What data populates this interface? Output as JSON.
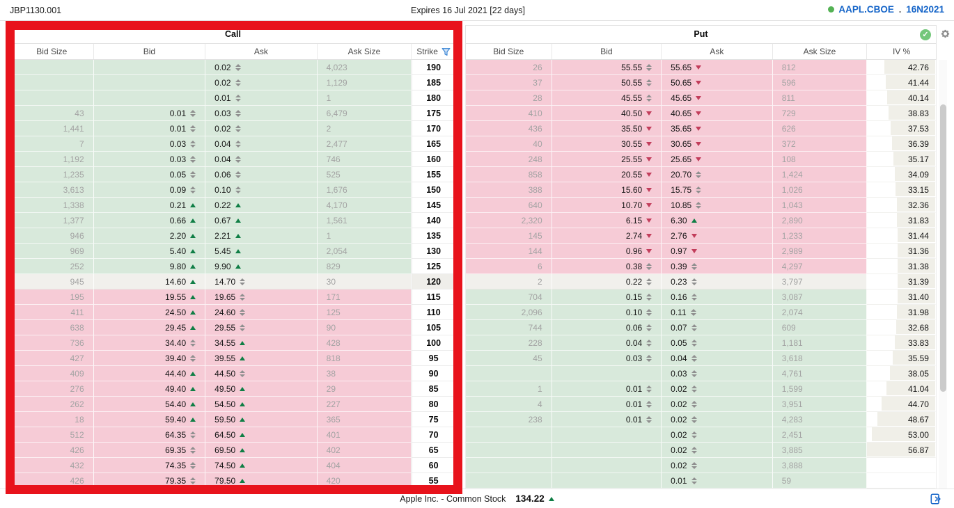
{
  "top_bar": {
    "account": "JBP1130.001",
    "expiry": "Expires 16 Jul 2021 [22 days]",
    "symbol": "AAPL.CBOE",
    "separator": ".",
    "contract": "16N2021"
  },
  "panels": {
    "call_title": "Call",
    "put_title": "Put"
  },
  "call_headers": [
    "Bid Size",
    "Bid",
    "Ask",
    "Ask Size",
    "Strike"
  ],
  "put_headers": [
    "Bid Size",
    "Bid",
    "Ask",
    "Ask Size",
    "IV %"
  ],
  "icons": {
    "filter": "funnel",
    "status_ok": "check-circle",
    "settings": "gear",
    "connection": "green-dot",
    "price_up": "triangle-up",
    "price_down": "triangle-down",
    "price_unchanged": "up-down-spinner",
    "footer_right": "panel-expand-arrows"
  },
  "colors": {
    "call_itm_bg": "#d8e9db",
    "put_itm_bg": "#f6cbd6",
    "atm_bg": "#f1f0ec",
    "up_arrow": "#0f7e45",
    "down_arrow": "#c23d5b",
    "accent_blue": "#1464c8",
    "annotation_red": "#e8131c",
    "iv_bar": "#f0efe8"
  },
  "iv_scale_max": 57,
  "rows": [
    {
      "strike": "190",
      "zone": "high",
      "call": {
        "bid_size": "",
        "bid": "",
        "bid_dir": "",
        "ask": "0.02",
        "ask_dir": "spin",
        "ask_size": "4,023"
      },
      "put": {
        "bid_size": "26",
        "bid": "55.55",
        "bid_dir": "spin",
        "ask": "55.65",
        "ask_dir": "down",
        "ask_size": "812",
        "iv": "42.76"
      }
    },
    {
      "strike": "185",
      "zone": "high",
      "call": {
        "bid_size": "",
        "bid": "",
        "bid_dir": "",
        "ask": "0.02",
        "ask_dir": "spin",
        "ask_size": "1,129"
      },
      "put": {
        "bid_size": "37",
        "bid": "50.55",
        "bid_dir": "spin",
        "ask": "50.65",
        "ask_dir": "down",
        "ask_size": "596",
        "iv": "41.44"
      }
    },
    {
      "strike": "180",
      "zone": "high",
      "call": {
        "bid_size": "",
        "bid": "",
        "bid_dir": "",
        "ask": "0.01",
        "ask_dir": "spin",
        "ask_size": "1"
      },
      "put": {
        "bid_size": "28",
        "bid": "45.55",
        "bid_dir": "spin",
        "ask": "45.65",
        "ask_dir": "down",
        "ask_size": "811",
        "iv": "40.14"
      }
    },
    {
      "strike": "175",
      "zone": "high",
      "call": {
        "bid_size": "43",
        "bid": "0.01",
        "bid_dir": "spin",
        "ask": "0.03",
        "ask_dir": "spin",
        "ask_size": "6,479"
      },
      "put": {
        "bid_size": "410",
        "bid": "40.50",
        "bid_dir": "down",
        "ask": "40.65",
        "ask_dir": "down",
        "ask_size": "729",
        "iv": "38.83"
      }
    },
    {
      "strike": "170",
      "zone": "high",
      "call": {
        "bid_size": "1,441",
        "bid": "0.01",
        "bid_dir": "spin",
        "ask": "0.02",
        "ask_dir": "spin",
        "ask_size": "2"
      },
      "put": {
        "bid_size": "436",
        "bid": "35.50",
        "bid_dir": "down",
        "ask": "35.65",
        "ask_dir": "down",
        "ask_size": "626",
        "iv": "37.53"
      }
    },
    {
      "strike": "165",
      "zone": "high",
      "call": {
        "bid_size": "7",
        "bid": "0.03",
        "bid_dir": "spin",
        "ask": "0.04",
        "ask_dir": "spin",
        "ask_size": "2,477"
      },
      "put": {
        "bid_size": "40",
        "bid": "30.55",
        "bid_dir": "down",
        "ask": "30.65",
        "ask_dir": "down",
        "ask_size": "372",
        "iv": "36.39"
      }
    },
    {
      "strike": "160",
      "zone": "high",
      "call": {
        "bid_size": "1,192",
        "bid": "0.03",
        "bid_dir": "spin",
        "ask": "0.04",
        "ask_dir": "spin",
        "ask_size": "746"
      },
      "put": {
        "bid_size": "248",
        "bid": "25.55",
        "bid_dir": "down",
        "ask": "25.65",
        "ask_dir": "down",
        "ask_size": "108",
        "iv": "35.17"
      }
    },
    {
      "strike": "155",
      "zone": "high",
      "call": {
        "bid_size": "1,235",
        "bid": "0.05",
        "bid_dir": "spin",
        "ask": "0.06",
        "ask_dir": "spin",
        "ask_size": "525"
      },
      "put": {
        "bid_size": "858",
        "bid": "20.55",
        "bid_dir": "down",
        "ask": "20.70",
        "ask_dir": "spin",
        "ask_size": "1,424",
        "iv": "34.09"
      }
    },
    {
      "strike": "150",
      "zone": "high",
      "call": {
        "bid_size": "3,613",
        "bid": "0.09",
        "bid_dir": "spin",
        "ask": "0.10",
        "ask_dir": "spin",
        "ask_size": "1,676"
      },
      "put": {
        "bid_size": "388",
        "bid": "15.60",
        "bid_dir": "down",
        "ask": "15.75",
        "ask_dir": "spin",
        "ask_size": "1,026",
        "iv": "33.15"
      }
    },
    {
      "strike": "145",
      "zone": "high",
      "call": {
        "bid_size": "1,338",
        "bid": "0.21",
        "bid_dir": "up",
        "ask": "0.22",
        "ask_dir": "up",
        "ask_size": "4,170"
      },
      "put": {
        "bid_size": "640",
        "bid": "10.70",
        "bid_dir": "down",
        "ask": "10.85",
        "ask_dir": "spin",
        "ask_size": "1,043",
        "iv": "32.36"
      }
    },
    {
      "strike": "140",
      "zone": "high",
      "call": {
        "bid_size": "1,377",
        "bid": "0.66",
        "bid_dir": "up",
        "ask": "0.67",
        "ask_dir": "up",
        "ask_size": "1,561"
      },
      "put": {
        "bid_size": "2,320",
        "bid": "6.15",
        "bid_dir": "down",
        "ask": "6.30",
        "ask_dir": "up",
        "ask_size": "2,890",
        "iv": "31.83"
      }
    },
    {
      "strike": "135",
      "zone": "high",
      "call": {
        "bid_size": "946",
        "bid": "2.20",
        "bid_dir": "up",
        "ask": "2.21",
        "ask_dir": "up",
        "ask_size": "1"
      },
      "put": {
        "bid_size": "145",
        "bid": "2.74",
        "bid_dir": "down",
        "ask": "2.76",
        "ask_dir": "down",
        "ask_size": "1,233",
        "iv": "31.44"
      }
    },
    {
      "strike": "130",
      "zone": "high",
      "call": {
        "bid_size": "969",
        "bid": "5.40",
        "bid_dir": "up",
        "ask": "5.45",
        "ask_dir": "up",
        "ask_size": "2,054"
      },
      "put": {
        "bid_size": "144",
        "bid": "0.96",
        "bid_dir": "down",
        "ask": "0.97",
        "ask_dir": "down",
        "ask_size": "2,989",
        "iv": "31.36"
      }
    },
    {
      "strike": "125",
      "zone": "high",
      "call": {
        "bid_size": "252",
        "bid": "9.80",
        "bid_dir": "up",
        "ask": "9.90",
        "ask_dir": "up",
        "ask_size": "829"
      },
      "put": {
        "bid_size": "6",
        "bid": "0.38",
        "bid_dir": "spin",
        "ask": "0.39",
        "ask_dir": "spin",
        "ask_size": "4,297",
        "iv": "31.38"
      }
    },
    {
      "strike": "120",
      "zone": "atm",
      "call": {
        "bid_size": "945",
        "bid": "14.60",
        "bid_dir": "up",
        "ask": "14.70",
        "ask_dir": "spin",
        "ask_size": "30"
      },
      "put": {
        "bid_size": "2",
        "bid": "0.22",
        "bid_dir": "spin",
        "ask": "0.23",
        "ask_dir": "spin",
        "ask_size": "3,797",
        "iv": "31.39"
      }
    },
    {
      "strike": "115",
      "zone": "low",
      "call": {
        "bid_size": "195",
        "bid": "19.55",
        "bid_dir": "up",
        "ask": "19.65",
        "ask_dir": "spin",
        "ask_size": "171"
      },
      "put": {
        "bid_size": "704",
        "bid": "0.15",
        "bid_dir": "spin",
        "ask": "0.16",
        "ask_dir": "spin",
        "ask_size": "3,087",
        "iv": "31.40"
      }
    },
    {
      "strike": "110",
      "zone": "low",
      "call": {
        "bid_size": "411",
        "bid": "24.50",
        "bid_dir": "up",
        "ask": "24.60",
        "ask_dir": "spin",
        "ask_size": "125"
      },
      "put": {
        "bid_size": "2,096",
        "bid": "0.10",
        "bid_dir": "spin",
        "ask": "0.11",
        "ask_dir": "spin",
        "ask_size": "2,074",
        "iv": "31.98"
      }
    },
    {
      "strike": "105",
      "zone": "low",
      "call": {
        "bid_size": "638",
        "bid": "29.45",
        "bid_dir": "up",
        "ask": "29.55",
        "ask_dir": "spin",
        "ask_size": "90"
      },
      "put": {
        "bid_size": "744",
        "bid": "0.06",
        "bid_dir": "spin",
        "ask": "0.07",
        "ask_dir": "spin",
        "ask_size": "609",
        "iv": "32.68"
      }
    },
    {
      "strike": "100",
      "zone": "low",
      "call": {
        "bid_size": "736",
        "bid": "34.40",
        "bid_dir": "spin",
        "ask": "34.55",
        "ask_dir": "up",
        "ask_size": "428"
      },
      "put": {
        "bid_size": "228",
        "bid": "0.04",
        "bid_dir": "spin",
        "ask": "0.05",
        "ask_dir": "spin",
        "ask_size": "1,181",
        "iv": "33.83"
      }
    },
    {
      "strike": "95",
      "zone": "low",
      "call": {
        "bid_size": "427",
        "bid": "39.40",
        "bid_dir": "spin",
        "ask": "39.55",
        "ask_dir": "up",
        "ask_size": "818"
      },
      "put": {
        "bid_size": "45",
        "bid": "0.03",
        "bid_dir": "spin",
        "ask": "0.04",
        "ask_dir": "spin",
        "ask_size": "3,618",
        "iv": "35.59"
      }
    },
    {
      "strike": "90",
      "zone": "low",
      "call": {
        "bid_size": "409",
        "bid": "44.40",
        "bid_dir": "up",
        "ask": "44.50",
        "ask_dir": "spin",
        "ask_size": "38"
      },
      "put": {
        "bid_size": "",
        "bid": "",
        "bid_dir": "",
        "ask": "0.03",
        "ask_dir": "spin",
        "ask_size": "4,761",
        "iv": "38.05"
      }
    },
    {
      "strike": "85",
      "zone": "low",
      "call": {
        "bid_size": "276",
        "bid": "49.40",
        "bid_dir": "up",
        "ask": "49.50",
        "ask_dir": "up",
        "ask_size": "29"
      },
      "put": {
        "bid_size": "1",
        "bid": "0.01",
        "bid_dir": "spin",
        "ask": "0.02",
        "ask_dir": "spin",
        "ask_size": "1,599",
        "iv": "41.04"
      }
    },
    {
      "strike": "80",
      "zone": "low",
      "call": {
        "bid_size": "262",
        "bid": "54.40",
        "bid_dir": "up",
        "ask": "54.50",
        "ask_dir": "up",
        "ask_size": "227"
      },
      "put": {
        "bid_size": "4",
        "bid": "0.01",
        "bid_dir": "spin",
        "ask": "0.02",
        "ask_dir": "spin",
        "ask_size": "3,951",
        "iv": "44.70"
      }
    },
    {
      "strike": "75",
      "zone": "low",
      "call": {
        "bid_size": "18",
        "bid": "59.40",
        "bid_dir": "up",
        "ask": "59.50",
        "ask_dir": "up",
        "ask_size": "365"
      },
      "put": {
        "bid_size": "238",
        "bid": "0.01",
        "bid_dir": "spin",
        "ask": "0.02",
        "ask_dir": "spin",
        "ask_size": "4,283",
        "iv": "48.67"
      }
    },
    {
      "strike": "70",
      "zone": "low",
      "call": {
        "bid_size": "512",
        "bid": "64.35",
        "bid_dir": "spin",
        "ask": "64.50",
        "ask_dir": "up",
        "ask_size": "401"
      },
      "put": {
        "bid_size": "",
        "bid": "",
        "bid_dir": "",
        "ask": "0.02",
        "ask_dir": "spin",
        "ask_size": "2,451",
        "iv": "53.00"
      }
    },
    {
      "strike": "65",
      "zone": "low",
      "call": {
        "bid_size": "426",
        "bid": "69.35",
        "bid_dir": "spin",
        "ask": "69.50",
        "ask_dir": "up",
        "ask_size": "402"
      },
      "put": {
        "bid_size": "",
        "bid": "",
        "bid_dir": "",
        "ask": "0.02",
        "ask_dir": "spin",
        "ask_size": "3,885",
        "iv": "56.87"
      }
    },
    {
      "strike": "60",
      "zone": "low",
      "call": {
        "bid_size": "432",
        "bid": "74.35",
        "bid_dir": "spin",
        "ask": "74.50",
        "ask_dir": "up",
        "ask_size": "404"
      },
      "put": {
        "bid_size": "",
        "bid": "",
        "bid_dir": "",
        "ask": "0.02",
        "ask_dir": "spin",
        "ask_size": "3,888",
        "iv": ""
      }
    },
    {
      "strike": "55",
      "zone": "low",
      "call": {
        "bid_size": "426",
        "bid": "79.35",
        "bid_dir": "spin",
        "ask": "79.50",
        "ask_dir": "up",
        "ask_size": "420"
      },
      "put": {
        "bid_size": "",
        "bid": "",
        "bid_dir": "",
        "ask": "0.01",
        "ask_dir": "spin",
        "ask_size": "59",
        "iv": ""
      }
    }
  ],
  "footer": {
    "stock_name": "Apple Inc. - Common Stock",
    "last_price": "134.22",
    "direction": "up"
  }
}
